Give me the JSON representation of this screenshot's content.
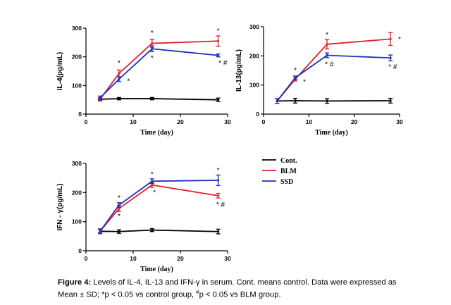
{
  "caption": {
    "label": "Figure 4:",
    "line1": "Levels of IL-4, IL-13 and IFN-γ in serum. Cont. means control. Data were expressed as",
    "line2_a": "Mean ± SD; ",
    "line2_b": "*p < 0.05 vs control group, ",
    "line2_sup": "#",
    "line2_c": "p < 0.05 vs BLM group."
  },
  "legend": {
    "items": [
      {
        "label": "Cont.",
        "color": "#000000"
      },
      {
        "label": "BLM",
        "color": "#e8212b"
      },
      {
        "label": "SSD",
        "color": "#1f2fbf"
      }
    ]
  },
  "chart_data": [
    {
      "type": "line",
      "ylabel": "IL-4(pg/mL)",
      "xlabel": "Time (day)",
      "xlim": [
        0,
        30
      ],
      "ylim": [
        0,
        300
      ],
      "xticks": [
        0,
        10,
        20,
        30
      ],
      "yticks": [
        0,
        100,
        200,
        300
      ],
      "x": [
        3,
        7,
        14,
        28
      ],
      "series": [
        {
          "name": "Cont.",
          "color": "#000000",
          "values": [
            52,
            54,
            54,
            50
          ],
          "errors": [
            4,
            4,
            4,
            6
          ]
        },
        {
          "name": "BLM",
          "color": "#e8212b",
          "values": [
            52,
            142,
            247,
            255
          ],
          "errors": [
            6,
            12,
            14,
            18
          ]
        },
        {
          "name": "SSD",
          "color": "#1f2fbf",
          "values": [
            57,
            122,
            228,
            205
          ],
          "errors": [
            6,
            8,
            10,
            5
          ]
        }
      ],
      "annotations": [
        {
          "x": 7,
          "y": 178,
          "text": "*"
        },
        {
          "x": 9,
          "y": 114,
          "text": "*"
        },
        {
          "x": 14,
          "y": 283,
          "text": "*"
        },
        {
          "x": 14,
          "y": 195,
          "text": "*"
        },
        {
          "x": 28,
          "y": 290,
          "text": "*"
        },
        {
          "x": 29,
          "y": 178,
          "text": "* #"
        }
      ]
    },
    {
      "type": "line",
      "ylabel": "IL-13(pg/mL)",
      "xlabel": "Time (day)",
      "xlim": [
        0,
        30
      ],
      "ylim": [
        0,
        300
      ],
      "xticks": [
        0,
        10,
        20,
        30
      ],
      "yticks": [
        0,
        100,
        200,
        300
      ],
      "x": [
        3,
        7,
        14,
        28
      ],
      "series": [
        {
          "name": "Cont.",
          "color": "#000000",
          "values": [
            45,
            46,
            45,
            46
          ],
          "errors": [
            8,
            8,
            8,
            8
          ]
        },
        {
          "name": "BLM",
          "color": "#e8212b",
          "values": [
            45,
            120,
            240,
            258
          ],
          "errors": [
            8,
            6,
            16,
            22
          ]
        },
        {
          "name": "SSD",
          "color": "#1f2fbf",
          "values": [
            45,
            125,
            202,
            193
          ],
          "errors": [
            8,
            6,
            8,
            10
          ]
        }
      ],
      "annotations": [
        {
          "x": 7,
          "y": 150,
          "text": "*"
        },
        {
          "x": 9,
          "y": 110,
          "text": "*"
        },
        {
          "x": 14,
          "y": 272,
          "text": "*"
        },
        {
          "x": 14.5,
          "y": 170,
          "text": "* #"
        },
        {
          "x": 30,
          "y": 257,
          "text": "*"
        },
        {
          "x": 28.5,
          "y": 162,
          "text": "* #"
        }
      ]
    },
    {
      "type": "line",
      "ylabel": "IFN - γ(pg/mL)",
      "xlabel": "Time (day)",
      "xlim": [
        0,
        30
      ],
      "ylim": [
        0,
        300
      ],
      "xticks": [
        0,
        10,
        20,
        30
      ],
      "yticks": [
        0,
        100,
        200,
        300
      ],
      "x": [
        3,
        7,
        14,
        28
      ],
      "series": [
        {
          "name": "Cont.",
          "color": "#000000",
          "values": [
            67,
            66,
            71,
            66
          ],
          "errors": [
            6,
            6,
            5,
            8
          ]
        },
        {
          "name": "BLM",
          "color": "#e8212b",
          "values": [
            67,
            145,
            226,
            189
          ],
          "errors": [
            8,
            10,
            8,
            8
          ]
        },
        {
          "name": "SSD",
          "color": "#1f2fbf",
          "values": [
            67,
            157,
            239,
            242
          ],
          "errors": [
            8,
            8,
            8,
            18
          ]
        }
      ],
      "annotations": [
        {
          "x": 7,
          "y": 182,
          "text": "*"
        },
        {
          "x": 7,
          "y": 118,
          "text": "*"
        },
        {
          "x": 14,
          "y": 263,
          "text": "*"
        },
        {
          "x": 14.5,
          "y": 200,
          "text": "*"
        },
        {
          "x": 28,
          "y": 276,
          "text": "*"
        },
        {
          "x": 28.5,
          "y": 158,
          "text": "* #"
        }
      ]
    }
  ]
}
